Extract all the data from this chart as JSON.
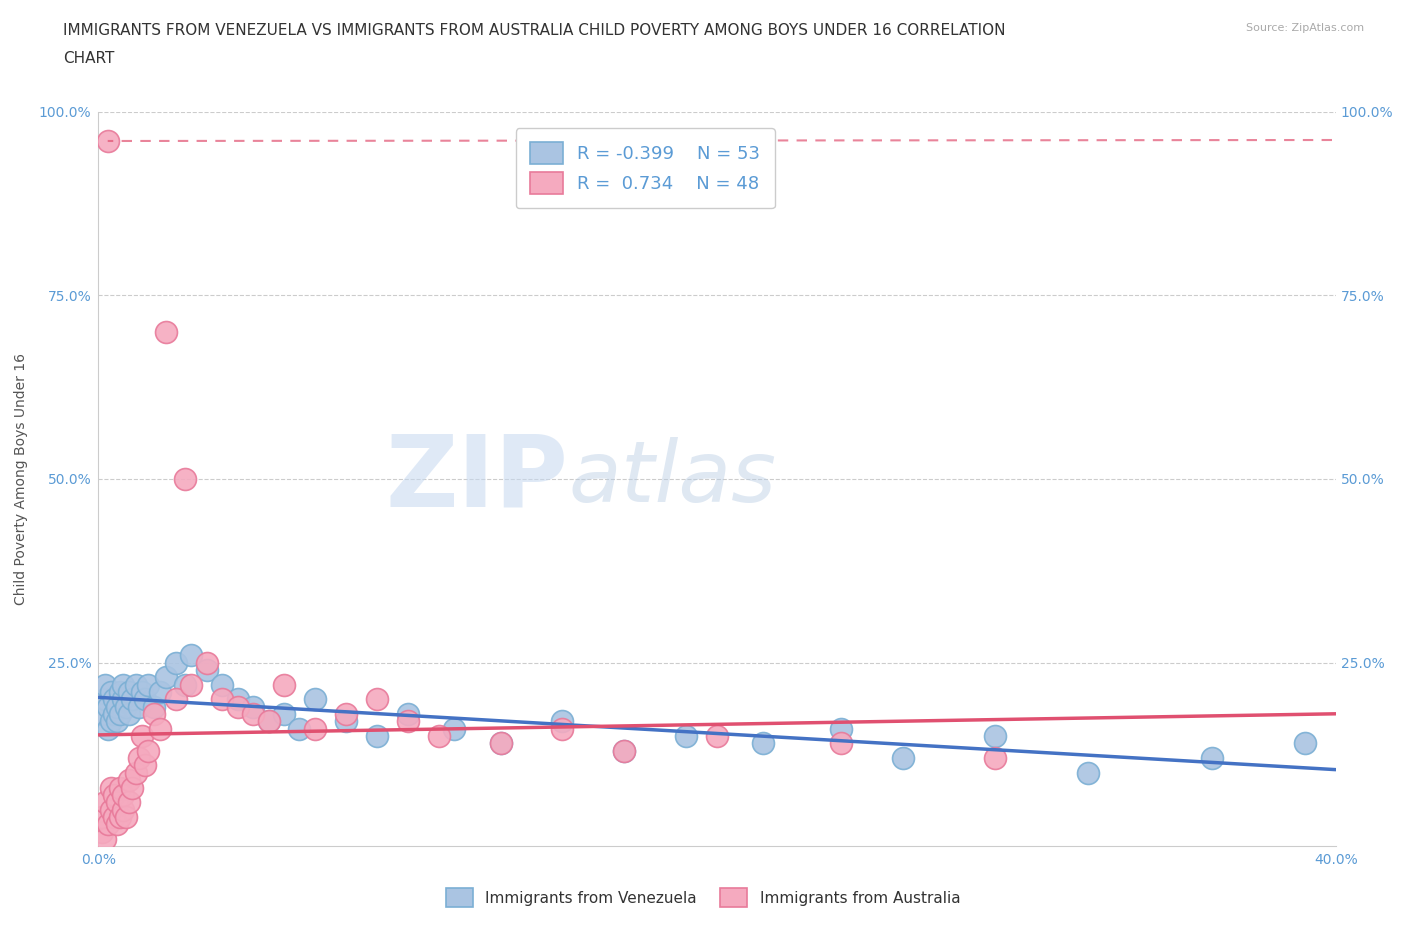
{
  "title_line1": "IMMIGRANTS FROM VENEZUELA VS IMMIGRANTS FROM AUSTRALIA CHILD POVERTY AMONG BOYS UNDER 16 CORRELATION",
  "title_line2": "CHART",
  "source": "Source: ZipAtlas.com",
  "ylabel": "Child Poverty Among Boys Under 16",
  "watermark_ZIP": "ZIP",
  "watermark_atlas": "atlas",
  "xlim": [
    0.0,
    0.4
  ],
  "ylim": [
    0.0,
    1.0
  ],
  "venezuela_color": "#aac4e2",
  "venezuela_edge": "#7bafd4",
  "australia_color": "#f5aabf",
  "australia_edge": "#e87a9a",
  "trend_venezuela_color": "#4472c4",
  "trend_australia_color": "#e05070",
  "R_venezuela": -0.399,
  "N_venezuela": 53,
  "R_australia": 0.734,
  "N_australia": 48,
  "legend_label_venezuela": "Immigrants from Venezuela",
  "legend_label_australia": "Immigrants from Australia",
  "venezuela_x": [
    0.001,
    0.002,
    0.002,
    0.003,
    0.003,
    0.004,
    0.004,
    0.005,
    0.005,
    0.006,
    0.006,
    0.007,
    0.007,
    0.008,
    0.008,
    0.009,
    0.01,
    0.01,
    0.011,
    0.012,
    0.013,
    0.014,
    0.015,
    0.016,
    0.018,
    0.02,
    0.022,
    0.025,
    0.028,
    0.03,
    0.035,
    0.04,
    0.045,
    0.05,
    0.055,
    0.06,
    0.065,
    0.07,
    0.08,
    0.09,
    0.1,
    0.115,
    0.13,
    0.15,
    0.17,
    0.19,
    0.215,
    0.24,
    0.26,
    0.29,
    0.32,
    0.36,
    0.39
  ],
  "venezuela_y": [
    0.18,
    0.2,
    0.22,
    0.16,
    0.19,
    0.17,
    0.21,
    0.18,
    0.2,
    0.17,
    0.19,
    0.21,
    0.18,
    0.2,
    0.22,
    0.19,
    0.21,
    0.18,
    0.2,
    0.22,
    0.19,
    0.21,
    0.2,
    0.22,
    0.19,
    0.21,
    0.23,
    0.25,
    0.22,
    0.26,
    0.24,
    0.22,
    0.2,
    0.19,
    0.17,
    0.18,
    0.16,
    0.2,
    0.17,
    0.15,
    0.18,
    0.16,
    0.14,
    0.17,
    0.13,
    0.15,
    0.14,
    0.16,
    0.12,
    0.15,
    0.1,
    0.12,
    0.14
  ],
  "australia_x": [
    0.001,
    0.001,
    0.002,
    0.002,
    0.003,
    0.003,
    0.004,
    0.004,
    0.005,
    0.005,
    0.006,
    0.006,
    0.007,
    0.007,
    0.008,
    0.008,
    0.009,
    0.01,
    0.01,
    0.011,
    0.012,
    0.013,
    0.014,
    0.015,
    0.016,
    0.018,
    0.02,
    0.022,
    0.025,
    0.028,
    0.03,
    0.035,
    0.04,
    0.045,
    0.05,
    0.055,
    0.06,
    0.07,
    0.08,
    0.09,
    0.1,
    0.11,
    0.13,
    0.15,
    0.17,
    0.2,
    0.24,
    0.29
  ],
  "australia_y": [
    0.02,
    0.04,
    0.01,
    0.06,
    0.03,
    0.96,
    0.05,
    0.08,
    0.04,
    0.07,
    0.03,
    0.06,
    0.04,
    0.08,
    0.05,
    0.07,
    0.04,
    0.06,
    0.09,
    0.08,
    0.1,
    0.12,
    0.15,
    0.11,
    0.13,
    0.18,
    0.16,
    0.7,
    0.2,
    0.5,
    0.22,
    0.25,
    0.2,
    0.19,
    0.18,
    0.17,
    0.22,
    0.16,
    0.18,
    0.2,
    0.17,
    0.15,
    0.14,
    0.16,
    0.13,
    0.15,
    0.14,
    0.12
  ],
  "grid_color": "#cccccc",
  "background_color": "#ffffff",
  "title_color": "#333333",
  "axis_label_color": "#555555",
  "tick_color": "#5b9bd5",
  "title_fontsize": 11,
  "label_fontsize": 10,
  "tick_fontsize": 10,
  "legend_fontsize": 13
}
